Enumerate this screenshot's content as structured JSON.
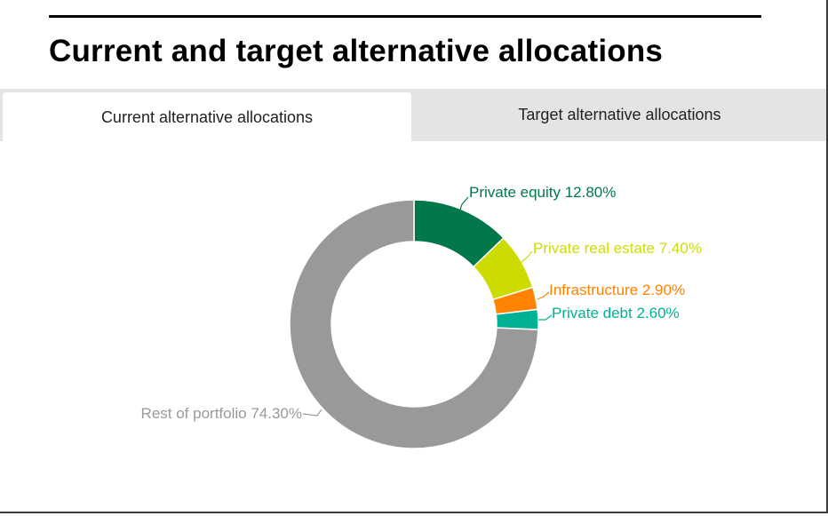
{
  "header": {
    "title": "Current and target alternative allocations"
  },
  "tabs": [
    {
      "label": "Current alternative allocations",
      "active": true
    },
    {
      "label": "Target alternative allocations",
      "active": false
    }
  ],
  "chart_data": {
    "type": "pie",
    "subtype": "donut",
    "title": "Current alternative allocations",
    "categories": [
      "Private equity",
      "Private real estate",
      "Infrastructure",
      "Private debt",
      "Rest of portfolio"
    ],
    "values": [
      12.8,
      7.4,
      2.9,
      2.6,
      74.3
    ],
    "unit": "%",
    "colors": [
      "#00784a",
      "#cddc00",
      "#ff8200",
      "#00b294",
      "#999999"
    ],
    "labels": [
      "Private equity 12.80%",
      "Private real estate 7.40%",
      "Infrastructure 2.90%",
      "Private debt 2.60%",
      "Rest of portfolio 74.30%"
    ],
    "start_angle": "12 o'clock, clockwise",
    "legend": "none (direct labels with leader lines)"
  }
}
